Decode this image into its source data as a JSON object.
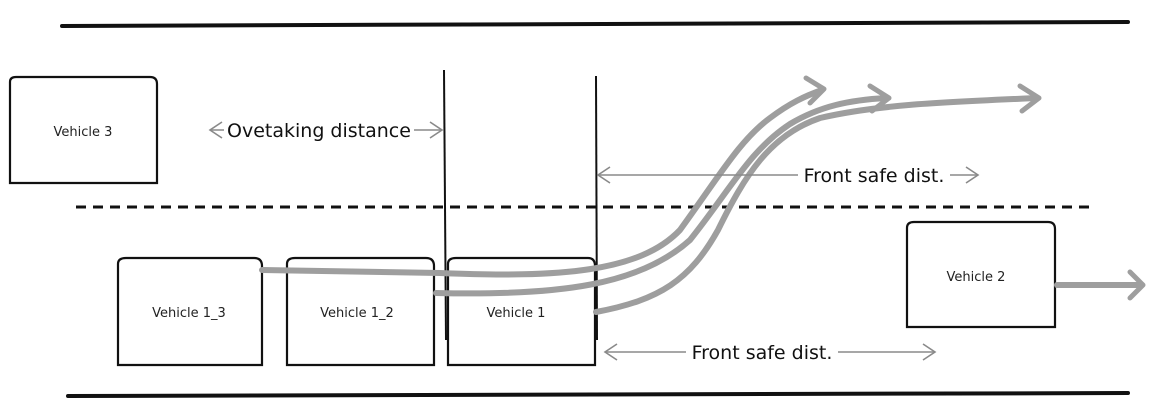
{
  "vehicles": {
    "v3": "Vehicle 3",
    "v1_3": "Vehicle 1_3",
    "v1_2": "Vehicle 1_2",
    "v1": "Vehicle 1",
    "v2": "Vehicle 2"
  },
  "labels": {
    "overtaking_distance": "Ovetaking distance",
    "front_safe_dist_upper": "Front safe dist.",
    "front_safe_dist_lower": "Front safe dist."
  },
  "colors": {
    "lines": "#111111",
    "trajectory": "#9e9e9e",
    "dimension": "#8a8a8a"
  }
}
